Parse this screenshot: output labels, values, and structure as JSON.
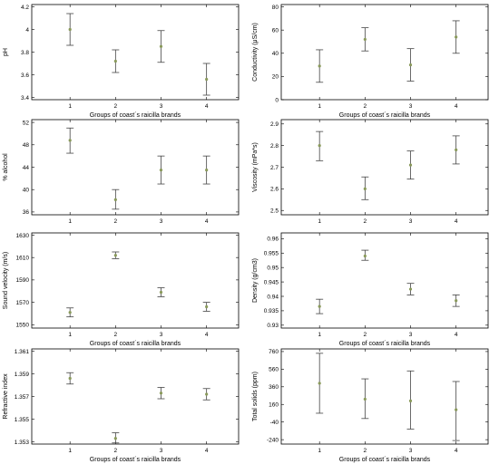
{
  "colors": {
    "point": "#8a9a5b",
    "errorbar": "#444444",
    "frame": "#000000"
  },
  "chart_data": [
    {
      "type": "scatter",
      "title": "",
      "ylabel": "pH",
      "xlabel": "Groups of coast´s  raicilla brands",
      "ylim": [
        3.38,
        4.22
      ],
      "yticks": [
        "3.4",
        "3.6",
        "3.8",
        "4",
        "4.2"
      ],
      "yticks_v": [
        3.4,
        3.6,
        3.8,
        4.0,
        4.2
      ],
      "categories": [
        "1",
        "2",
        "3",
        "4"
      ],
      "means": [
        4.0,
        3.72,
        3.85,
        3.56
      ],
      "lower": [
        3.86,
        3.62,
        3.71,
        3.42
      ],
      "upper": [
        4.14,
        3.82,
        3.99,
        3.7
      ]
    },
    {
      "type": "scatter",
      "title": "",
      "ylabel": "Conductivity (μS/cm)",
      "xlabel": "Groups of coast´s  raicilla brands",
      "ylim": [
        0,
        82
      ],
      "yticks": [
        "0",
        "20",
        "40",
        "60",
        "80"
      ],
      "yticks_v": [
        0,
        20,
        40,
        60,
        80
      ],
      "categories": [
        "1",
        "2",
        "3",
        "4"
      ],
      "means": [
        29,
        52,
        30,
        54
      ],
      "lower": [
        15,
        42,
        16,
        40
      ],
      "upper": [
        43,
        62,
        44,
        68
      ]
    },
    {
      "type": "scatter",
      "title": "",
      "ylabel": "% alcohol",
      "xlabel": "",
      "ylim": [
        35.5,
        52.5
      ],
      "yticks": [
        "36",
        "40",
        "44",
        "48",
        "52"
      ],
      "yticks_v": [
        36,
        40,
        44,
        48,
        52
      ],
      "categories": [
        "1",
        "2",
        "3",
        "4"
      ],
      "means": [
        48.8,
        38.2,
        43.5,
        43.5
      ],
      "lower": [
        46.5,
        36.5,
        41.0,
        41.0
      ],
      "upper": [
        51.0,
        40.0,
        46.0,
        46.0
      ]
    },
    {
      "type": "scatter",
      "title": "",
      "ylabel": "Viscosity (mPa*s)",
      "xlabel": "",
      "ylim": [
        2.48,
        2.92
      ],
      "yticks": [
        "2.5",
        "2.6",
        "2.7",
        "2.8",
        "2.9"
      ],
      "yticks_v": [
        2.5,
        2.6,
        2.7,
        2.8,
        2.9
      ],
      "categories": [
        "1",
        "2",
        "3",
        "4"
      ],
      "means": [
        2.8,
        2.6,
        2.71,
        2.78
      ],
      "lower": [
        2.73,
        2.55,
        2.645,
        2.715
      ],
      "upper": [
        2.865,
        2.655,
        2.775,
        2.845
      ]
    },
    {
      "type": "scatter",
      "title": "",
      "ylabel": "Sound velocity (m/s)",
      "xlabel": "Groups of coast´s  raicilla brands",
      "ylim": [
        1547,
        1632
      ],
      "yticks": [
        "1550",
        "1570",
        "1590",
        "1610",
        "1630"
      ],
      "yticks_v": [
        1550,
        1570,
        1590,
        1610,
        1630
      ],
      "categories": [
        "1",
        "2",
        "3",
        "4"
      ],
      "means": [
        1561,
        1612,
        1579,
        1566
      ],
      "lower": [
        1557,
        1609,
        1575,
        1562
      ],
      "upper": [
        1565,
        1615,
        1583,
        1570
      ]
    },
    {
      "type": "scatter",
      "title": "",
      "ylabel": "Density (g/cm3)",
      "xlabel": "Groups of coast´s  raicilla brands",
      "ylim": [
        0.929,
        0.962
      ],
      "yticks": [
        "0.93",
        "0.935",
        "0.94",
        "0.945",
        "0.95",
        "0.955",
        "0.96"
      ],
      "yticks_v": [
        0.93,
        0.935,
        0.94,
        0.945,
        0.95,
        0.955,
        0.96
      ],
      "categories": [
        "1",
        "2",
        "3",
        "4"
      ],
      "means": [
        0.9365,
        0.954,
        0.9425,
        0.9385
      ],
      "lower": [
        0.934,
        0.9525,
        0.9405,
        0.9365
      ],
      "upper": [
        0.939,
        0.956,
        0.9445,
        0.9405
      ]
    },
    {
      "type": "scatter",
      "title": "",
      "ylabel": "Refractive index",
      "xlabel": "Groups of coast´s  raicilla brands",
      "ylim": [
        1.3528,
        1.3612
      ],
      "yticks": [
        "1.353",
        "1.355",
        "1.357",
        "1.359",
        "1.361"
      ],
      "yticks_v": [
        1.353,
        1.355,
        1.357,
        1.359,
        1.361
      ],
      "categories": [
        "1",
        "2",
        "3",
        "4"
      ],
      "means": [
        1.3586,
        1.3533,
        1.3573,
        1.3572
      ],
      "lower": [
        1.3581,
        1.3529,
        1.3568,
        1.3567
      ],
      "upper": [
        1.3591,
        1.3538,
        1.3578,
        1.3577
      ]
    },
    {
      "type": "scatter",
      "title": "",
      "ylabel": "Total solids (ppm)",
      "xlabel": "Groups of coast´s  raicilla brands",
      "ylim": [
        -290,
        790
      ],
      "yticks": [
        "-240",
        "-40",
        "160",
        "360",
        "560",
        "760"
      ],
      "yticks_v": [
        -240,
        -40,
        160,
        360,
        560,
        760
      ],
      "categories": [
        "1",
        "2",
        "3",
        "4"
      ],
      "means": [
        400,
        220,
        200,
        100
      ],
      "lower": [
        60,
        0,
        -120,
        -250
      ],
      "upper": [
        740,
        450,
        540,
        420
      ]
    }
  ]
}
